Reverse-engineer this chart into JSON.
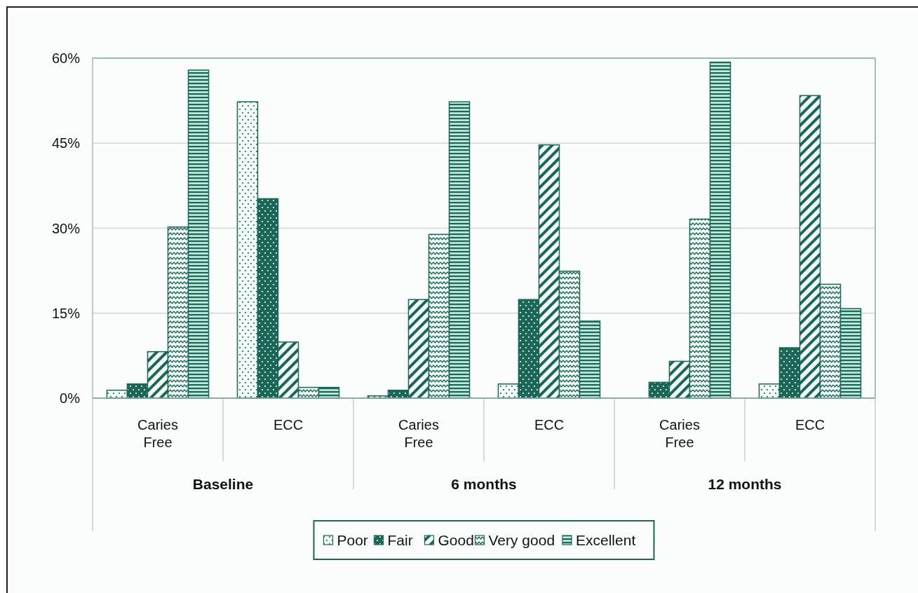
{
  "chart_data": {
    "type": "bar",
    "categories": [
      "Caries Free",
      "ECC",
      "Caries Free",
      "ECC",
      "Caries Free",
      "ECC"
    ],
    "series": [
      {
        "name": "Poor",
        "color": "#1b6657",
        "values": [
          1.4,
          52.3,
          0.4,
          2.5,
          0,
          2.5
        ]
      },
      {
        "name": "Fair",
        "color": "#1b6657",
        "values": [
          2.5,
          35.2,
          1.4,
          17.4,
          2.8,
          8.9
        ]
      },
      {
        "name": "Good",
        "color": "#1b6657",
        "values": [
          8.2,
          9.9,
          17.4,
          44.7,
          6.5,
          53.4
        ]
      },
      {
        "name": "Very good",
        "color": "#1b6657",
        "values": [
          30.2,
          1.9,
          28.9,
          22.4,
          31.6,
          20.1
        ]
      },
      {
        "name": "Excellent",
        "color": "#1b6657",
        "values": [
          57.9,
          1.9,
          52.3,
          13.6,
          59.3,
          15.8
        ]
      }
    ],
    "annotations": [
      "Baseline",
      "6 months",
      "12 months"
    ],
    "ylim": [
      0,
      60
    ],
    "yticks": [
      {
        "value": 0,
        "label": "0%"
      },
      {
        "value": 15,
        "label": "15%"
      },
      {
        "value": 30,
        "label": "30%"
      },
      {
        "value": 45,
        "label": "45%"
      },
      {
        "value": 60,
        "label": "60%"
      }
    ],
    "grid": "y",
    "legend": "bottom"
  }
}
